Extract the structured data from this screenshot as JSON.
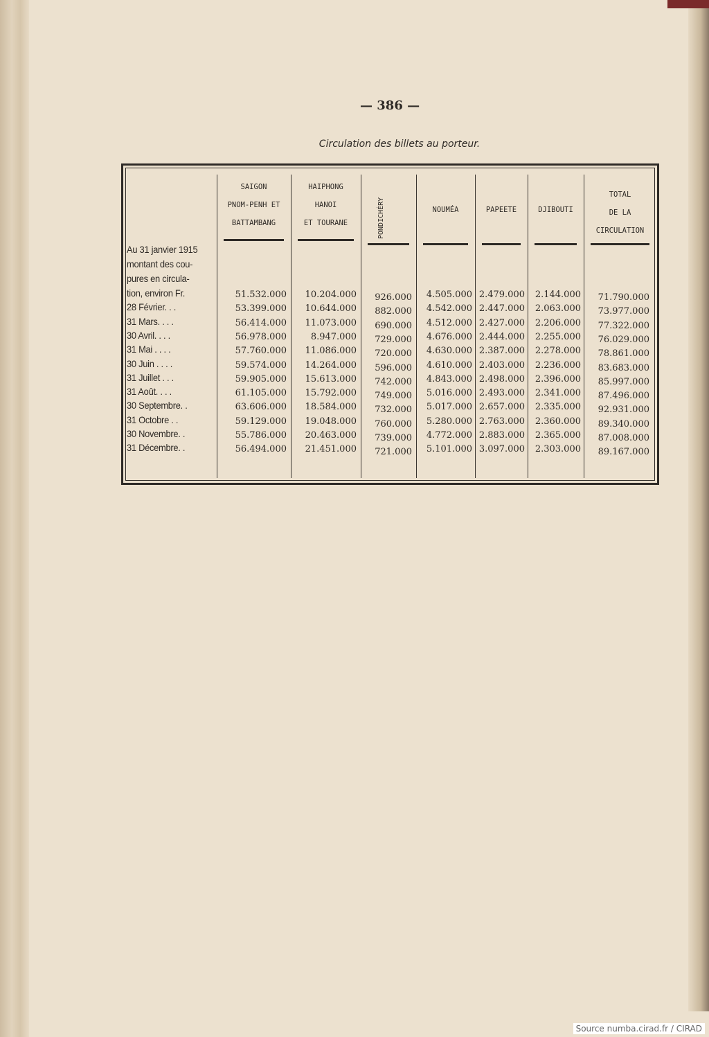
{
  "page_number": "— 386 —",
  "title": "Circulation des billets au porteur.",
  "table": {
    "headers": [
      [
        "SAIGON",
        "PNOM-PENH ET",
        "BATTAMBANG"
      ],
      [
        "HAIPHONG",
        "HANOI",
        "ET TOURANE"
      ],
      [
        "PONDICHÉRY"
      ],
      [
        "NOUMÉA"
      ],
      [
        "PAPEETE"
      ],
      [
        "DJIBOUTI"
      ],
      [
        "TOTAL",
        "DE LA",
        "CIRCULATION"
      ]
    ],
    "intro_label": [
      "Au 31 janvier 1915",
      "montant des cou-",
      "pures en circula-"
    ],
    "rows": [
      {
        "label": "tion, environ Fr.",
        "values": [
          "51.532.000",
          "10.204.000",
          "926.000",
          "4.505.000",
          "2.479.000",
          "2.144.000",
          "71.790.000"
        ]
      },
      {
        "label": "28 Février. . .",
        "values": [
          "53.399.000",
          "10.644.000",
          "882.000",
          "4.542.000",
          "2.447.000",
          "2.063.000",
          "73.977.000"
        ]
      },
      {
        "label": "31 Mars. . . .",
        "values": [
          "56.414.000",
          "11.073.000",
          "690.000",
          "4.512.000",
          "2.427.000",
          "2.206.000",
          "77.322.000"
        ]
      },
      {
        "label": "30 Avril. . . .",
        "values": [
          "56.978.000",
          "8.947.000",
          "729.000",
          "4.676.000",
          "2.444.000",
          "2.255.000",
          "76.029.000"
        ]
      },
      {
        "label": "31 Mai . . . .",
        "values": [
          "57.760.000",
          "11.086.000",
          "720.000",
          "4.630.000",
          "2.387.000",
          "2.278.000",
          "78.861.000"
        ]
      },
      {
        "label": "30 Juin . . . .",
        "values": [
          "59.574.000",
          "14.264.000",
          "596.000",
          "4.610.000",
          "2.403.000",
          "2.236.000",
          "83.683.000"
        ]
      },
      {
        "label": "31 Juillet . . .",
        "values": [
          "59.905.000",
          "15.613.000",
          "742.000",
          "4.843.000",
          "2.498.000",
          "2.396.000",
          "85.997.000"
        ]
      },
      {
        "label": "31 Août. . . .",
        "values": [
          "61.105.000",
          "15.792.000",
          "749.000",
          "5.016.000",
          "2.493.000",
          "2.341.000",
          "87.496.000"
        ]
      },
      {
        "label": "30 Septembre. .",
        "values": [
          "63.606.000",
          "18.584.000",
          "732.000",
          "5.017.000",
          "2.657.000",
          "2.335.000",
          "92.931.000"
        ]
      },
      {
        "label": "31 Octobre . .",
        "values": [
          "59.129.000",
          "19.048.000",
          "760.000",
          "5.280.000",
          "2.763.000",
          "2.360.000",
          "89.340.000"
        ]
      },
      {
        "label": "30 Novembre. .",
        "values": [
          "55.786.000",
          "20.463.000",
          "739.000",
          "4.772.000",
          "2.883.000",
          "2.365.000",
          "87.008.000"
        ]
      },
      {
        "label": "31 Décembre. .",
        "values": [
          "56.494.000",
          "21.451.000",
          "721.000",
          "5.101.000",
          "3.097.000",
          "2.303.000",
          "89.167.000"
        ]
      }
    ]
  },
  "source": "Source numba.cirad.fr / CIRAD"
}
